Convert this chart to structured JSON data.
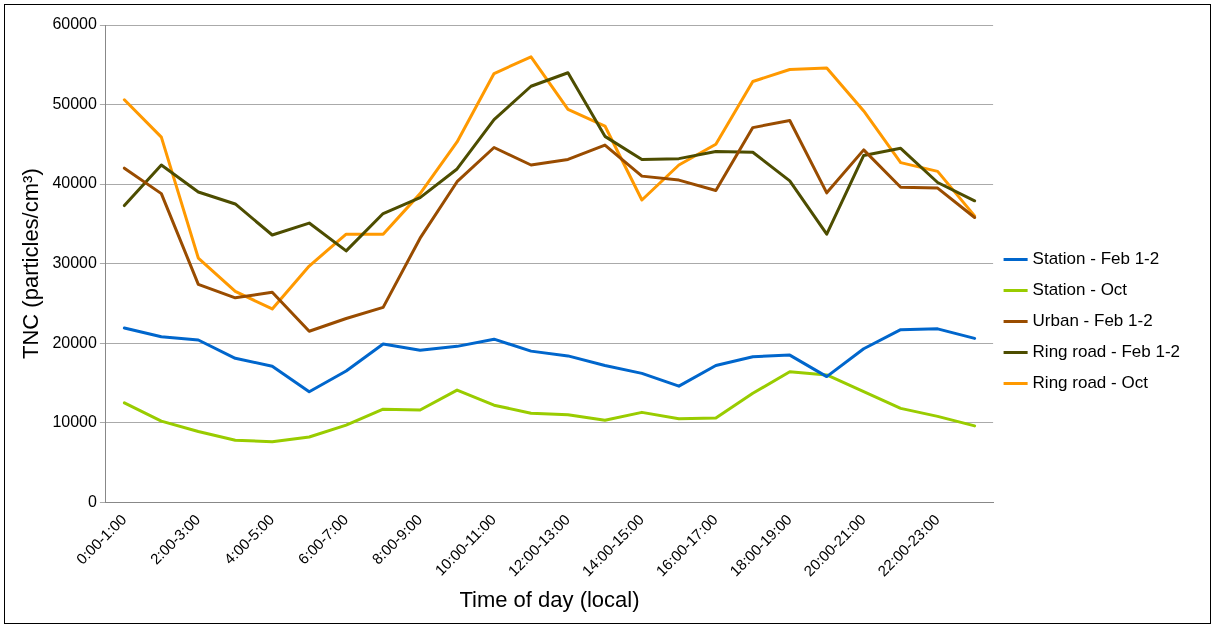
{
  "chart_data": {
    "type": "line",
    "xlabel": "Time of day (local)",
    "ylabel": "TNC (particles/cm³)",
    "categories": [
      "0:00-1:00",
      null,
      "2:00-3:00",
      null,
      "4:00-5:00",
      null,
      "6:00-7:00",
      null,
      "8:00-9:00",
      null,
      "10:00-11:00",
      null,
      "12:00-13:00",
      null,
      "14:00-15:00",
      null,
      "16:00-17:00",
      null,
      "18:00-19:00",
      null,
      "20:00-21:00",
      null,
      "22:00-23:00",
      null
    ],
    "series": [
      {
        "name": "Station - Feb 1-2",
        "color": "#0066cc",
        "values": [
          21900,
          20800,
          20400,
          18100,
          17100,
          13900,
          16500,
          19900,
          19100,
          19600,
          20500,
          19000,
          18400,
          17200,
          16200,
          14600,
          17200,
          18300,
          18500,
          15800,
          19300,
          21700,
          21800,
          20600
        ]
      },
      {
        "name": "Station - Oct",
        "color": "#99cc00",
        "values": [
          12500,
          10200,
          8900,
          7800,
          7600,
          8200,
          9700,
          11700,
          11600,
          14100,
          12200,
          11200,
          11000,
          10300,
          11300,
          10500,
          10600,
          13700,
          16400,
          16000,
          13900,
          11800,
          10800,
          9600
        ]
      },
      {
        "name": "Urban - Feb 1-2",
        "color": "#994c00",
        "values": [
          42000,
          38800,
          27400,
          25700,
          26400,
          21500,
          23100,
          24500,
          33200,
          40300,
          44600,
          42400,
          43100,
          44900,
          41000,
          40500,
          39200,
          47100,
          48000,
          38900,
          44300,
          39600,
          39500,
          35800
        ]
      },
      {
        "name": "Ring road - Feb 1-2",
        "color": "#4d4d00",
        "values": [
          37300,
          42400,
          39000,
          37500,
          33600,
          35100,
          31600,
          36300,
          38300,
          41900,
          48100,
          52300,
          54000,
          46000,
          43100,
          43200,
          44100,
          44000,
          40400,
          33700,
          43600,
          44500,
          40200,
          37900
        ]
      },
      {
        "name": "Ring road - Oct",
        "color": "#ff9900",
        "values": [
          50600,
          45900,
          30700,
          26500,
          24300,
          29700,
          33700,
          33700,
          38800,
          45300,
          53900,
          56000,
          49400,
          47300,
          38000,
          42400,
          45000,
          52900,
          54400,
          54600,
          49200,
          42700,
          41600,
          36000
        ]
      }
    ],
    "ylim": [
      0,
      60000
    ],
    "yticks": [
      0,
      10000,
      20000,
      30000,
      40000,
      50000,
      60000
    ],
    "grid": "y",
    "legend": "right",
    "marker": "none",
    "line_style": "solid"
  }
}
